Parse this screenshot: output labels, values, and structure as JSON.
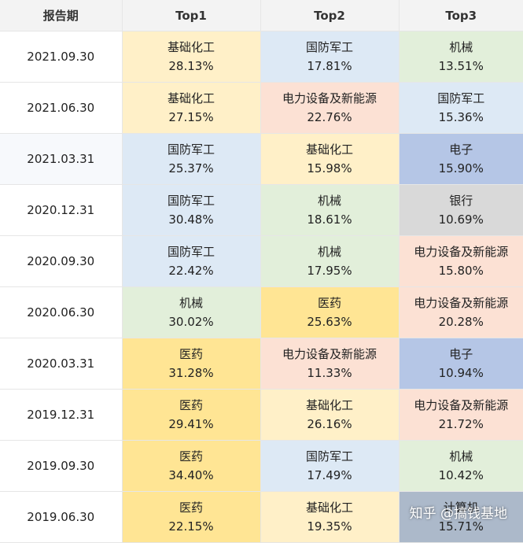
{
  "header": {
    "date": "报告期",
    "top1": "Top1",
    "top2": "Top2",
    "top3": "Top3"
  },
  "colors": {
    "基础化工": "#fff0c8",
    "国防军工": "#dde9f5",
    "机械": "#e2efda",
    "电力设备及新能源": "#fce1d4",
    "电子": "#b5c6e6",
    "银行": "#d9d9d9",
    "医药": "#ffe594",
    "计算机": "#acb9ca"
  },
  "rows": [
    {
      "date": "2021.09.30",
      "top1": {
        "name": "基础化工",
        "pct": "28.13%"
      },
      "top2": {
        "name": "国防军工",
        "pct": "17.81%"
      },
      "top3": {
        "name": "机械",
        "pct": "13.51%"
      }
    },
    {
      "date": "2021.06.30",
      "top1": {
        "name": "基础化工",
        "pct": "27.15%"
      },
      "top2": {
        "name": "电力设备及新能源",
        "pct": "22.76%"
      },
      "top3": {
        "name": "国防军工",
        "pct": "15.36%"
      }
    },
    {
      "date": "2021.03.31",
      "top1": {
        "name": "国防军工",
        "pct": "25.37%"
      },
      "top2": {
        "name": "基础化工",
        "pct": "15.98%"
      },
      "top3": {
        "name": "电子",
        "pct": "15.90%"
      }
    },
    {
      "date": "2020.12.31",
      "top1": {
        "name": "国防军工",
        "pct": "30.48%"
      },
      "top2": {
        "name": "机械",
        "pct": "18.61%"
      },
      "top3": {
        "name": "银行",
        "pct": "10.69%"
      }
    },
    {
      "date": "2020.09.30",
      "top1": {
        "name": "国防军工",
        "pct": "22.42%"
      },
      "top2": {
        "name": "机械",
        "pct": "17.95%"
      },
      "top3": {
        "name": "电力设备及新能源",
        "pct": "15.80%"
      }
    },
    {
      "date": "2020.06.30",
      "top1": {
        "name": "机械",
        "pct": "30.02%"
      },
      "top2": {
        "name": "医药",
        "pct": "25.63%"
      },
      "top3": {
        "name": "电力设备及新能源",
        "pct": "20.28%"
      }
    },
    {
      "date": "2020.03.31",
      "top1": {
        "name": "医药",
        "pct": "31.28%"
      },
      "top2": {
        "name": "电力设备及新能源",
        "pct": "11.33%"
      },
      "top3": {
        "name": "电子",
        "pct": "10.94%"
      }
    },
    {
      "date": "2019.12.31",
      "top1": {
        "name": "医药",
        "pct": "29.41%"
      },
      "top2": {
        "name": "基础化工",
        "pct": "26.16%"
      },
      "top3": {
        "name": "电力设备及新能源",
        "pct": "21.72%"
      }
    },
    {
      "date": "2019.09.30",
      "top1": {
        "name": "医药",
        "pct": "34.40%"
      },
      "top2": {
        "name": "国防军工",
        "pct": "17.49%"
      },
      "top3": {
        "name": "机械",
        "pct": "10.42%"
      }
    },
    {
      "date": "2019.06.30",
      "top1": {
        "name": "医药",
        "pct": "22.15%"
      },
      "top2": {
        "name": "基础化工",
        "pct": "19.35%"
      },
      "top3": {
        "name": "计算机",
        "pct": "15.71%"
      }
    }
  ],
  "watermark": "知乎 @搞钱基地"
}
